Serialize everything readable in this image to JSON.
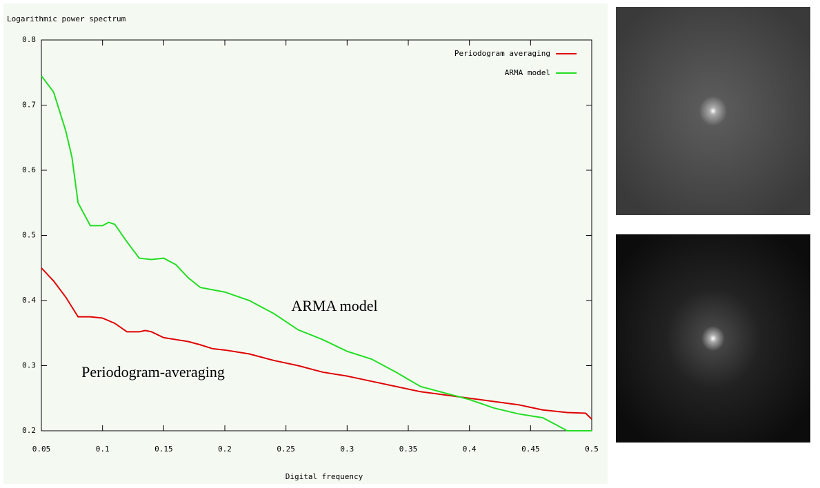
{
  "chart_data": {
    "type": "line",
    "title": "Logarithmic power spectrum",
    "xlabel": "Digital frequency",
    "annotations": [
      "ARMA model",
      "Periodogram-averaging"
    ],
    "xlim": [
      0.05,
      0.5
    ],
    "ylim": [
      0.2,
      0.8
    ],
    "xticks": [
      0.05,
      0.1,
      0.15,
      0.2,
      0.25,
      0.3,
      0.35,
      0.4,
      0.45,
      0.5
    ],
    "yticks": [
      0.2,
      0.3,
      0.4,
      0.5,
      0.6,
      0.7,
      0.8
    ],
    "grid": false,
    "legend": "top-right",
    "series": [
      {
        "name": "Periodogram averaging",
        "color": "#e00000",
        "x": [
          0.05,
          0.06,
          0.07,
          0.08,
          0.09,
          0.1,
          0.11,
          0.12,
          0.13,
          0.135,
          0.14,
          0.15,
          0.16,
          0.17,
          0.18,
          0.19,
          0.2,
          0.22,
          0.24,
          0.26,
          0.28,
          0.3,
          0.32,
          0.34,
          0.36,
          0.38,
          0.4,
          0.42,
          0.44,
          0.46,
          0.48,
          0.495,
          0.5
        ],
        "values": [
          0.45,
          0.43,
          0.405,
          0.375,
          0.375,
          0.373,
          0.365,
          0.352,
          0.352,
          0.354,
          0.352,
          0.343,
          0.34,
          0.337,
          0.332,
          0.326,
          0.324,
          0.318,
          0.308,
          0.3,
          0.29,
          0.284,
          0.276,
          0.268,
          0.26,
          0.255,
          0.25,
          0.245,
          0.24,
          0.232,
          0.228,
          0.227,
          0.218
        ]
      },
      {
        "name": "ARMA model",
        "color": "#22dd22",
        "x": [
          0.05,
          0.06,
          0.07,
          0.075,
          0.08,
          0.09,
          0.1,
          0.105,
          0.11,
          0.12,
          0.13,
          0.14,
          0.15,
          0.16,
          0.17,
          0.18,
          0.2,
          0.22,
          0.24,
          0.26,
          0.28,
          0.3,
          0.32,
          0.34,
          0.36,
          0.38,
          0.4,
          0.42,
          0.44,
          0.46,
          0.47,
          0.48,
          0.5
        ],
        "values": [
          0.745,
          0.72,
          0.66,
          0.62,
          0.55,
          0.515,
          0.515,
          0.52,
          0.517,
          0.49,
          0.465,
          0.463,
          0.465,
          0.455,
          0.435,
          0.42,
          0.413,
          0.4,
          0.38,
          0.355,
          0.34,
          0.322,
          0.31,
          0.29,
          0.268,
          0.258,
          0.248,
          0.235,
          0.226,
          0.22,
          0.21,
          0.2,
          0.2
        ]
      }
    ]
  }
}
